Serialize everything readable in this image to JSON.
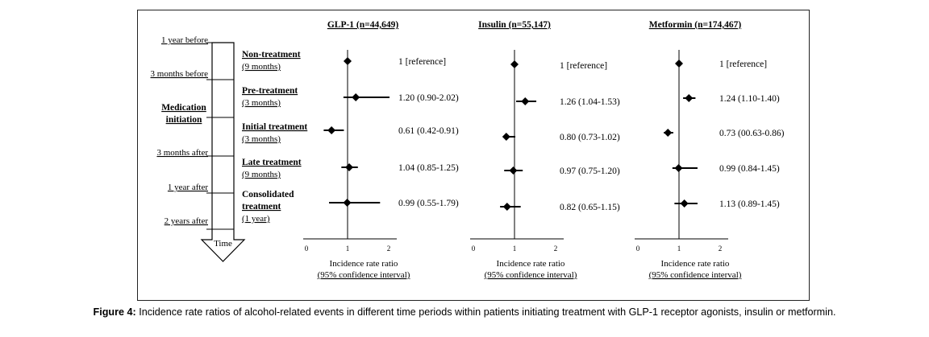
{
  "chart_data": {
    "type": "forest",
    "timeline": {
      "markers": [
        "1 year before",
        "3 months before",
        "Medication initiation",
        "3 months after",
        "1 year after",
        "2 years after"
      ],
      "arrow_label": "Time"
    },
    "periods": [
      {
        "name": "Non-treatment",
        "duration": "(9 months)"
      },
      {
        "name": "Pre-treatment",
        "duration": "(3 months)"
      },
      {
        "name": "Initial treatment",
        "duration": "(3 months)"
      },
      {
        "name": "Late treatment",
        "duration": "(9 months)"
      },
      {
        "name": "Consolidated treatment",
        "duration": "(1 year)"
      }
    ],
    "panels": [
      {
        "title": "GLP-1 (n=44,649)",
        "estimates": [
          1,
          1.2,
          0.61,
          1.04,
          0.99
        ],
        "lower": [
          1,
          0.9,
          0.42,
          0.85,
          0.55
        ],
        "upper": [
          1,
          2.02,
          0.91,
          1.25,
          1.79
        ],
        "labels": [
          "1 [reference]",
          "1.20 (0.90-2.02)",
          "0.61 (0.42-0.91)",
          "1.04 (0.85-1.25)",
          "0.99 (0.55-1.79)"
        ]
      },
      {
        "title": "Insulin (n=55,147)",
        "estimates": [
          1,
          1.26,
          0.8,
          0.97,
          0.82
        ],
        "lower": [
          1,
          1.04,
          0.73,
          0.75,
          0.65
        ],
        "upper": [
          1,
          1.53,
          1.02,
          1.2,
          1.15
        ],
        "labels": [
          "1 [reference]",
          "1.26 (1.04-1.53)",
          "0.80 (0.73-1.02)",
          "0.97 (0.75-1.20)",
          "0.82 (0.65-1.15)"
        ]
      },
      {
        "title": "Metformin (n=174,467)",
        "estimates": [
          1,
          1.24,
          0.73,
          0.99,
          1.13
        ],
        "lower": [
          1,
          1.1,
          0.63,
          0.84,
          0.89
        ],
        "upper": [
          1,
          1.4,
          0.86,
          1.45,
          1.45
        ],
        "labels": [
          "1 [reference]",
          "1.24 (1.10-1.40)",
          "0.73 (00.63-0.86)",
          "0.99 (0.84-1.45)",
          "1.13 (0.89-1.45)"
        ]
      }
    ],
    "xticks": [
      "0",
      "1",
      "2"
    ],
    "xlim": [
      0,
      2
    ],
    "xlabel_line1": "Incidence rate ratio",
    "xlabel_line2": "(95% confidence interval)"
  },
  "caption": {
    "label": "Figure 4:",
    "text": " Incidence rate ratios of alcohol-related events in different time periods within patients initiating treatment with GLP-1 receptor agonists, insulin or metformin."
  }
}
